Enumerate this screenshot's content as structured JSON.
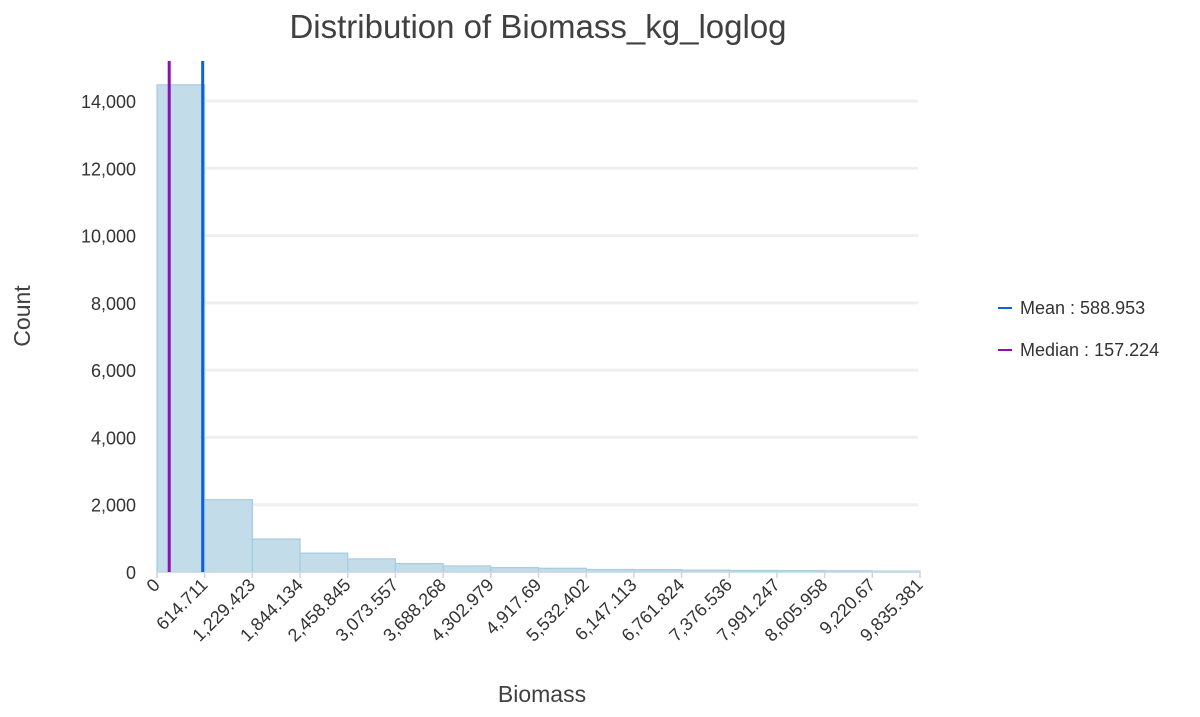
{
  "chart_data": {
    "type": "histogram",
    "title": "Distribution of Biomass_kg_loglog",
    "xlabel": "Biomass",
    "ylabel": "Count",
    "xlim": [
      0,
      9835.381
    ],
    "ylim": [
      0,
      15000
    ],
    "y_ticks": [
      0,
      2000,
      4000,
      6000,
      8000,
      10000,
      12000,
      14000
    ],
    "y_tick_labels": [
      "0",
      "2,000",
      "4,000",
      "6,000",
      "8,000",
      "10,000",
      "12,000",
      "14,000"
    ],
    "x_tick_labels": [
      "0",
      "614.711",
      "1,229.423",
      "1,844.134",
      "2,458.845",
      "3,073.557",
      "3,688.268",
      "4,302.979",
      "4,917.69",
      "5,532.402",
      "6,147.113",
      "6,761.824",
      "7,376.536",
      "7,991.247",
      "8,605.958",
      "9,220.67",
      "9,835.381"
    ],
    "bin_edges": [
      0,
      614.711,
      1229.423,
      1844.134,
      2458.845,
      3073.557,
      3688.268,
      4302.979,
      4917.69,
      5532.402,
      6147.113,
      6761.824,
      7376.536,
      7991.247,
      8605.958,
      9220.67,
      9835.381
    ],
    "values": [
      14480,
      2150,
      980,
      560,
      390,
      250,
      180,
      130,
      110,
      75,
      70,
      55,
      45,
      40,
      35,
      25
    ],
    "grid": true,
    "legend_position": "right",
    "colors": {
      "bar_fill": "#c3dcea",
      "bar_stroke": "#a6cce0",
      "grid": "#efefef",
      "axis": "#c9d6e2"
    },
    "reference_lines": [
      {
        "label": "Mean",
        "value_text": "588.953",
        "x": 588.953,
        "color": "#1060d6"
      },
      {
        "label": "Median",
        "value_text": "157.224",
        "x": 157.224,
        "color": "#8a10b0"
      }
    ]
  }
}
